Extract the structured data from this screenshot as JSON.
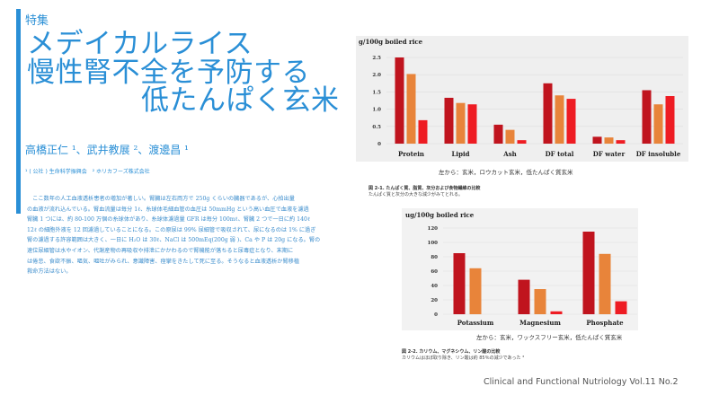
{
  "feature_label": "特集",
  "title": {
    "line1": "メデイカルライス",
    "line2": "慢性腎不全を予防する",
    "line3": "低たんぱく玄米"
  },
  "authors": "高橋正仁 ¹、武井教展 ²、渡邊昌 ¹",
  "affiliation": "¹ ( 公社 ) 生命科学振興会　² ホリカフーズ株式会社",
  "body_lines": [
    "　ここ数年の人工血液透析患者の増加が著しい。腎臓は左右両方で 250g くらいの臓器であるが、心拍出量",
    "の血液が流れ込んでいる。腎血流量は毎分 1ℓ、糸球体毛細血管の血圧は 50mmHg という高い血圧で血液を濾過",
    "腎臓 1 つには、約 80-100 万個の糸球体があり、糸球体濾過量 GFR は毎分 100mℓ、腎臓 2 つで一日に約 140ℓ",
    "12ℓ の細胞外液を 12 回濾過していることになる。この原尿は 99% 尿細管で吸収されて、尿になるのは 1% に過ぎ",
    "腎の濾過する許容範囲は大きく、一日に H₂O は 30ℓ、NaCl は 500mEq(200g 弱 )、Ca や P は 20g になる。腎の",
    "速位尿細管は水やイオン、代謝産物の再吸収や排泄にかかわるので腎機能が落ちると尿毒症となり、末期に",
    "は倦怠、食欲不振、嘔気、嘔吐がみられ、意識障害、痙攣をきたして死に至る。そうなると血液透析か腎移植",
    "救命方法はない。"
  ],
  "colors": {
    "accent": "#2a8fd6",
    "series_1": "#c0141e",
    "series_2": "#e8843a",
    "series_3": "#ee1c23"
  },
  "chart_data": [
    {
      "type": "bar",
      "ylabel": "g/100g boiled rice",
      "categories": [
        "Protein",
        "Lipid",
        "Ash",
        "DF total",
        "DF water",
        "DF insoluble"
      ],
      "series": [
        {
          "values": [
            2.5,
            1.33,
            0.55,
            1.75,
            0.2,
            1.55
          ]
        },
        {
          "values": [
            2.02,
            1.18,
            0.4,
            1.4,
            0.18,
            1.14
          ]
        },
        {
          "values": [
            0.68,
            1.14,
            0.1,
            1.3,
            0.1,
            1.38
          ]
        }
      ],
      "ylim": [
        0,
        2.5
      ],
      "yticks": [
        "0",
        "0.5",
        "1.0",
        "1.5",
        "2.0",
        "2.5"
      ],
      "caption": "左から：玄米，ロウカット玄米，低たんぱく質玄米",
      "figure_title": "図 2-1. たんぱく質、脂質、灰分および食物繊維の比較",
      "figure_note": "たんぱく質と灰分の大きな減少がみてとれる。"
    },
    {
      "type": "bar",
      "ylabel": "ug/100g boiled rice",
      "categories": [
        "Potassium",
        "Magnesium",
        "Phosphate"
      ],
      "series": [
        {
          "values": [
            85,
            48,
            115
          ]
        },
        {
          "values": [
            64,
            35,
            84
          ]
        },
        {
          "values": [
            0,
            4,
            18
          ]
        }
      ],
      "ylim": [
        0,
        120
      ],
      "yticks": [
        "0",
        "20",
        "40",
        "60",
        "80",
        "100",
        "120"
      ],
      "caption": "左から：玄米，ワックスフリー玄米，低たんぱく質玄米",
      "figure_title": "図 2-2. カリウム、マグネシウム、リン酸の比較",
      "figure_note": "カリウムはほぼ取り除き、リン酸は約 85％の減少であった ³"
    }
  ],
  "journal": "Clinical and Functional Nutriology Vol.11 No.2"
}
